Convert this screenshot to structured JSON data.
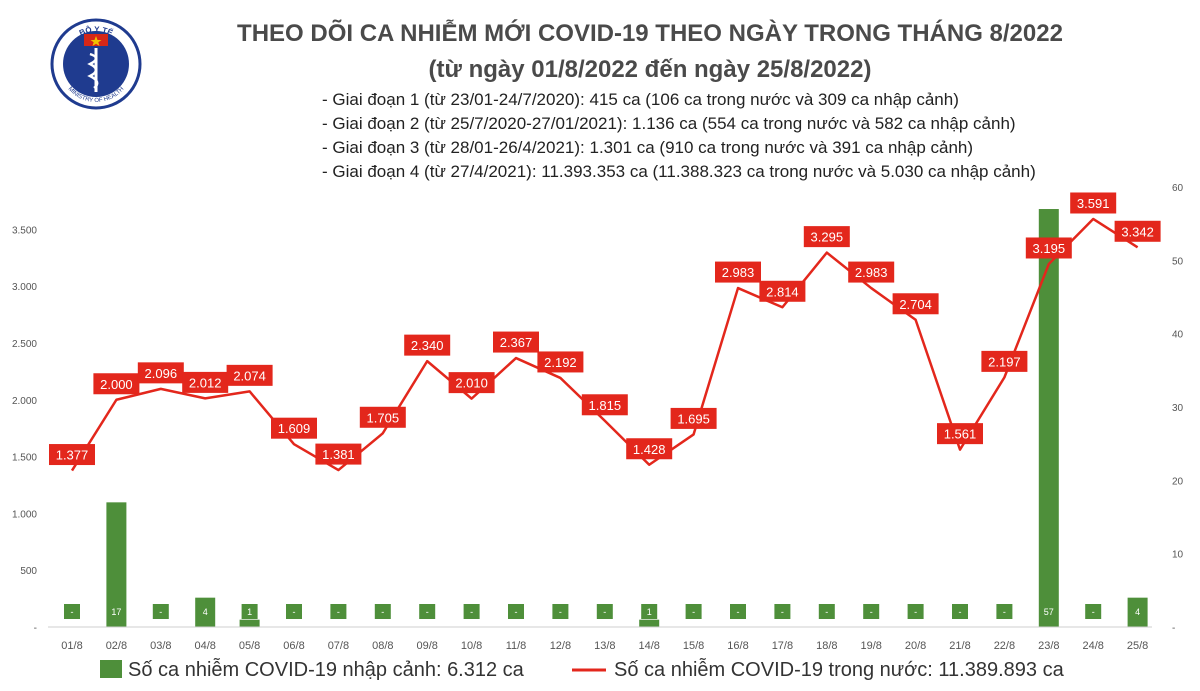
{
  "header": {
    "title_line1": "THEO DÕI CA NHIỄM MỚI COVID-19 THEO NGÀY TRONG THÁNG 8/2022",
    "title_line2": "(từ ngày 01/8/2022 đến ngày 25/8/2022)",
    "phases": [
      "- Giai đoạn 1 (từ 23/01-24/7/2020): 415 ca (106 ca trong nước và 309 ca nhập cảnh)",
      "- Giai đoạn 2 (từ 25/7/2020-27/01/2021): 1.136 ca (554 ca trong nước và 582 ca nhập cảnh)",
      "- Giai đoạn 3 (từ 28/01-26/4/2021): 1.301 ca (910 ca trong nước và 391 ca nhập cảnh)",
      "- Giai đoạn 4 (từ 27/4/2021): 11.393.353 ca (11.388.323 ca trong nước và 5.030 ca nhập cảnh)"
    ]
  },
  "logo": {
    "top_text": "BỘ Y TẾ",
    "bottom_text": "MINISTRY OF HEALTH",
    "colors": {
      "outer": "#1f3b8f",
      "star": "#f2c200",
      "flag": "#d62718"
    }
  },
  "chart_data": {
    "type": "bar+line",
    "categories": [
      "01/8",
      "02/8",
      "03/8",
      "04/8",
      "05/8",
      "06/8",
      "07/8",
      "08/8",
      "09/8",
      "10/8",
      "11/8",
      "12/8",
      "13/8",
      "14/8",
      "15/8",
      "16/8",
      "17/8",
      "18/8",
      "19/8",
      "20/8",
      "21/8",
      "22/8",
      "23/8",
      "24/8",
      "25/8"
    ],
    "series": [
      {
        "name": "Số ca nhiễm COVID-19 nhập cảnh: 6.312 ca",
        "kind": "bar",
        "axis": "right",
        "color": "#4e8f3a",
        "values": [
          0,
          17,
          0,
          4,
          1,
          0,
          0,
          0,
          0,
          0,
          0,
          0,
          0,
          1,
          0,
          0,
          0,
          0,
          0,
          0,
          0,
          0,
          57,
          0,
          4
        ],
        "labels": [
          "-",
          "17",
          "-",
          "4",
          "1",
          "-",
          "-",
          "-",
          "-",
          "-",
          "-",
          "-",
          "-",
          "1",
          "-",
          "-",
          "-",
          "-",
          "-",
          "-",
          "-",
          "-",
          "57",
          "-",
          "4"
        ]
      },
      {
        "name": "Số ca nhiễm COVID-19 trong nước: 11.389.893 ca",
        "kind": "line",
        "axis": "left",
        "color": "#e3271c",
        "values": [
          1377,
          2000,
          2096,
          2012,
          2074,
          1609,
          1381,
          1705,
          2340,
          2010,
          2367,
          2192,
          1815,
          1428,
          1695,
          2983,
          2814,
          3295,
          2983,
          2704,
          1561,
          2197,
          3195,
          3591,
          3342
        ],
        "labels": [
          "1.377",
          "2.000",
          "2.096",
          "2.012",
          "2.074",
          "1.609",
          "1.381",
          "1.705",
          "2.340",
          "2.010",
          "2.367",
          "2.192",
          "1.815",
          "1.428",
          "1.695",
          "2.983",
          "2.814",
          "3.295",
          "2.983",
          "2.704",
          "1.561",
          "2.197",
          "3.195",
          "3.591",
          "3.342"
        ]
      }
    ],
    "y_left": {
      "min": 0,
      "max": 3500,
      "ticks": [
        0,
        500,
        1000,
        1500,
        2000,
        2500,
        3000,
        3500
      ],
      "tick_labels": [
        "-",
        "500",
        "1.000",
        "1.500",
        "2.000",
        "2.500",
        "3.000",
        "3.500"
      ]
    },
    "y_right": {
      "min": 0,
      "max": 60,
      "ticks": [
        0,
        10,
        20,
        30,
        40,
        50,
        60
      ],
      "tick_labels": [
        "-",
        "10",
        "20",
        "30",
        "40",
        "50",
        "60"
      ]
    },
    "legend_position": "bottom"
  }
}
